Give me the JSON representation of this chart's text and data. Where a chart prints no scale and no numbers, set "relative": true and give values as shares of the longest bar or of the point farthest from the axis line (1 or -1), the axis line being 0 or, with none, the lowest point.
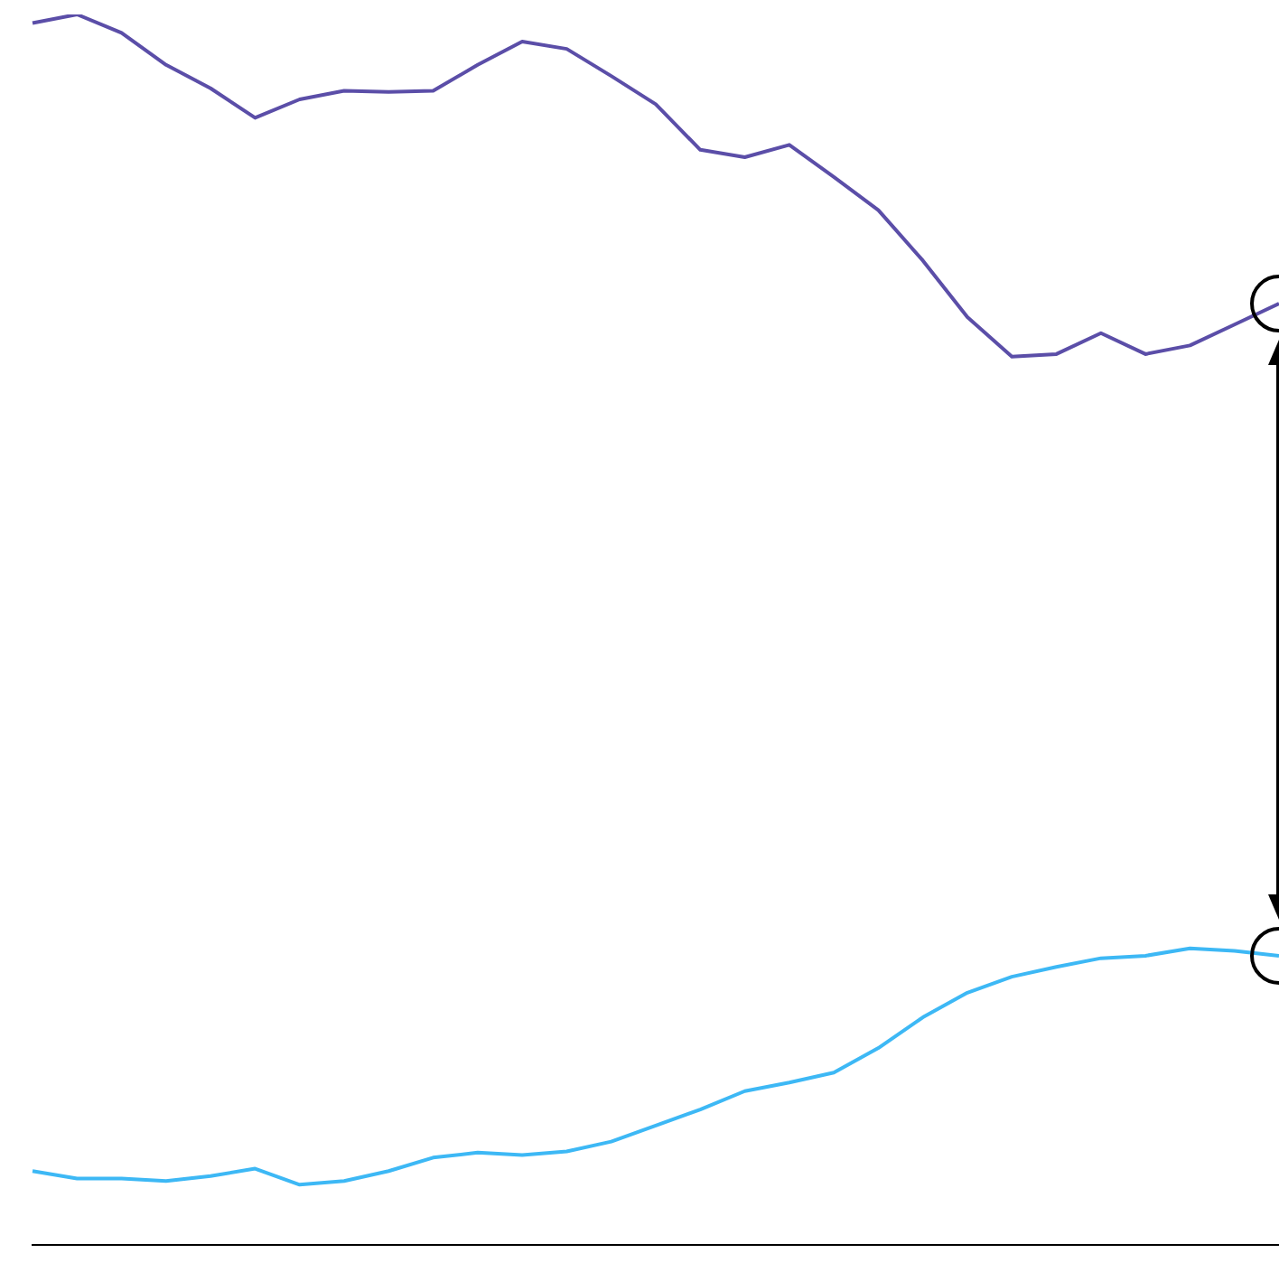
{
  "chart_data": {
    "type": "line",
    "relative": true,
    "grid": false,
    "legend": false,
    "categories": [
      null,
      null,
      null,
      null,
      null,
      null,
      null,
      null,
      null,
      null,
      null,
      null,
      null,
      null,
      null,
      null,
      null,
      null,
      null,
      null,
      null,
      null,
      null,
      null,
      null,
      null,
      null,
      null,
      null
    ],
    "series": [
      {
        "color": "#5b4ea8",
        "values": [
          0.993,
          1,
          0.985,
          0.959,
          0.94,
          0.916,
          0.931,
          0.938,
          0.937,
          0.938,
          0.959,
          0.978,
          0.972,
          0.95,
          0.927,
          0.89,
          0.884,
          0.894,
          0.868,
          0.841,
          0.8,
          0.754,
          0.722,
          0.724,
          0.741,
          0.724,
          0.731,
          0.748,
          0.765
        ]
      },
      {
        "color": "#3db8f5",
        "values": [
          0.06,
          0.054,
          0.054,
          0.052,
          0.056,
          0.062,
          0.049,
          0.052,
          0.06,
          0.071,
          0.075,
          0.073,
          0.076,
          0.084,
          0.097,
          0.11,
          0.125,
          0.132,
          0.14,
          0.16,
          0.185,
          0.205,
          0.218,
          0.226,
          0.233,
          0.235,
          0.241,
          0.239,
          0.235
        ]
      }
    ]
  }
}
